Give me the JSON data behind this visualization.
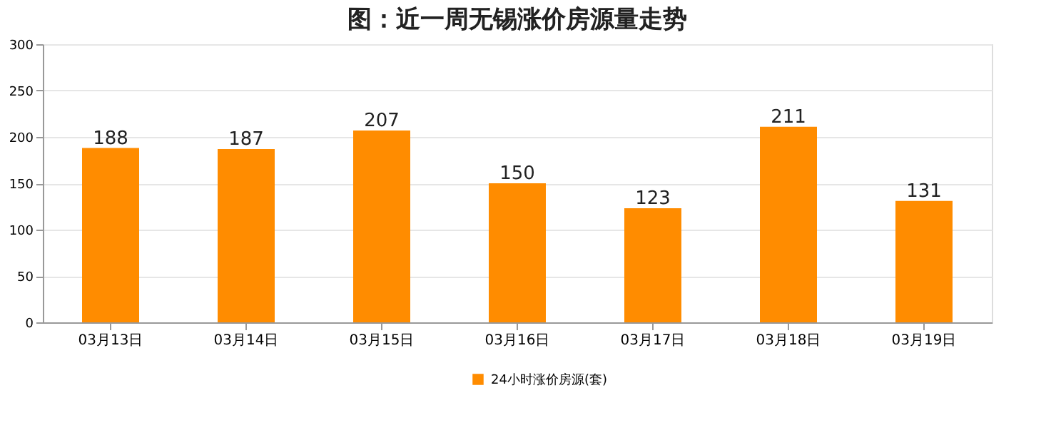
{
  "chart_data": {
    "type": "bar",
    "title": "图：近一周无锡涨价房源量走势",
    "categories": [
      "03月13日",
      "03月14日",
      "03月15日",
      "03月16日",
      "03月17日",
      "03月18日",
      "03月19日"
    ],
    "series": [
      {
        "name": "24小时涨价房源(套)",
        "color": "#ff8c00",
        "values": [
          188,
          187,
          207,
          150,
          123,
          211,
          131
        ]
      }
    ],
    "ylim": [
      0,
      300
    ],
    "yticks": [
      0,
      50,
      100,
      150,
      200,
      250,
      300
    ],
    "grid": "y",
    "legend": "bottom",
    "data_labels": true
  }
}
